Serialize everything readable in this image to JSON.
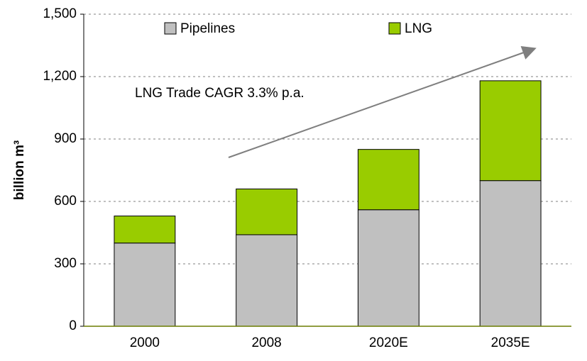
{
  "chart_data": {
    "type": "bar",
    "stacked": true,
    "categories": [
      "2000",
      "2008",
      "2020E",
      "2035E"
    ],
    "series": [
      {
        "name": "Pipelines",
        "color": "#c0c0c0",
        "values": [
          400,
          440,
          560,
          700
        ]
      },
      {
        "name": "LNG",
        "color": "#99cc00",
        "values": [
          130,
          220,
          290,
          480
        ]
      }
    ],
    "ylabel": "billion m³",
    "ylim": [
      0,
      1500
    ],
    "yticks": [
      0,
      300,
      600,
      900,
      {
        "value": 1200,
        "label": "1,200"
      },
      {
        "value": 1500,
        "label": "1,500"
      }
    ],
    "grid": true,
    "annotation": "LNG Trade CAGR 3.3% p.a."
  }
}
